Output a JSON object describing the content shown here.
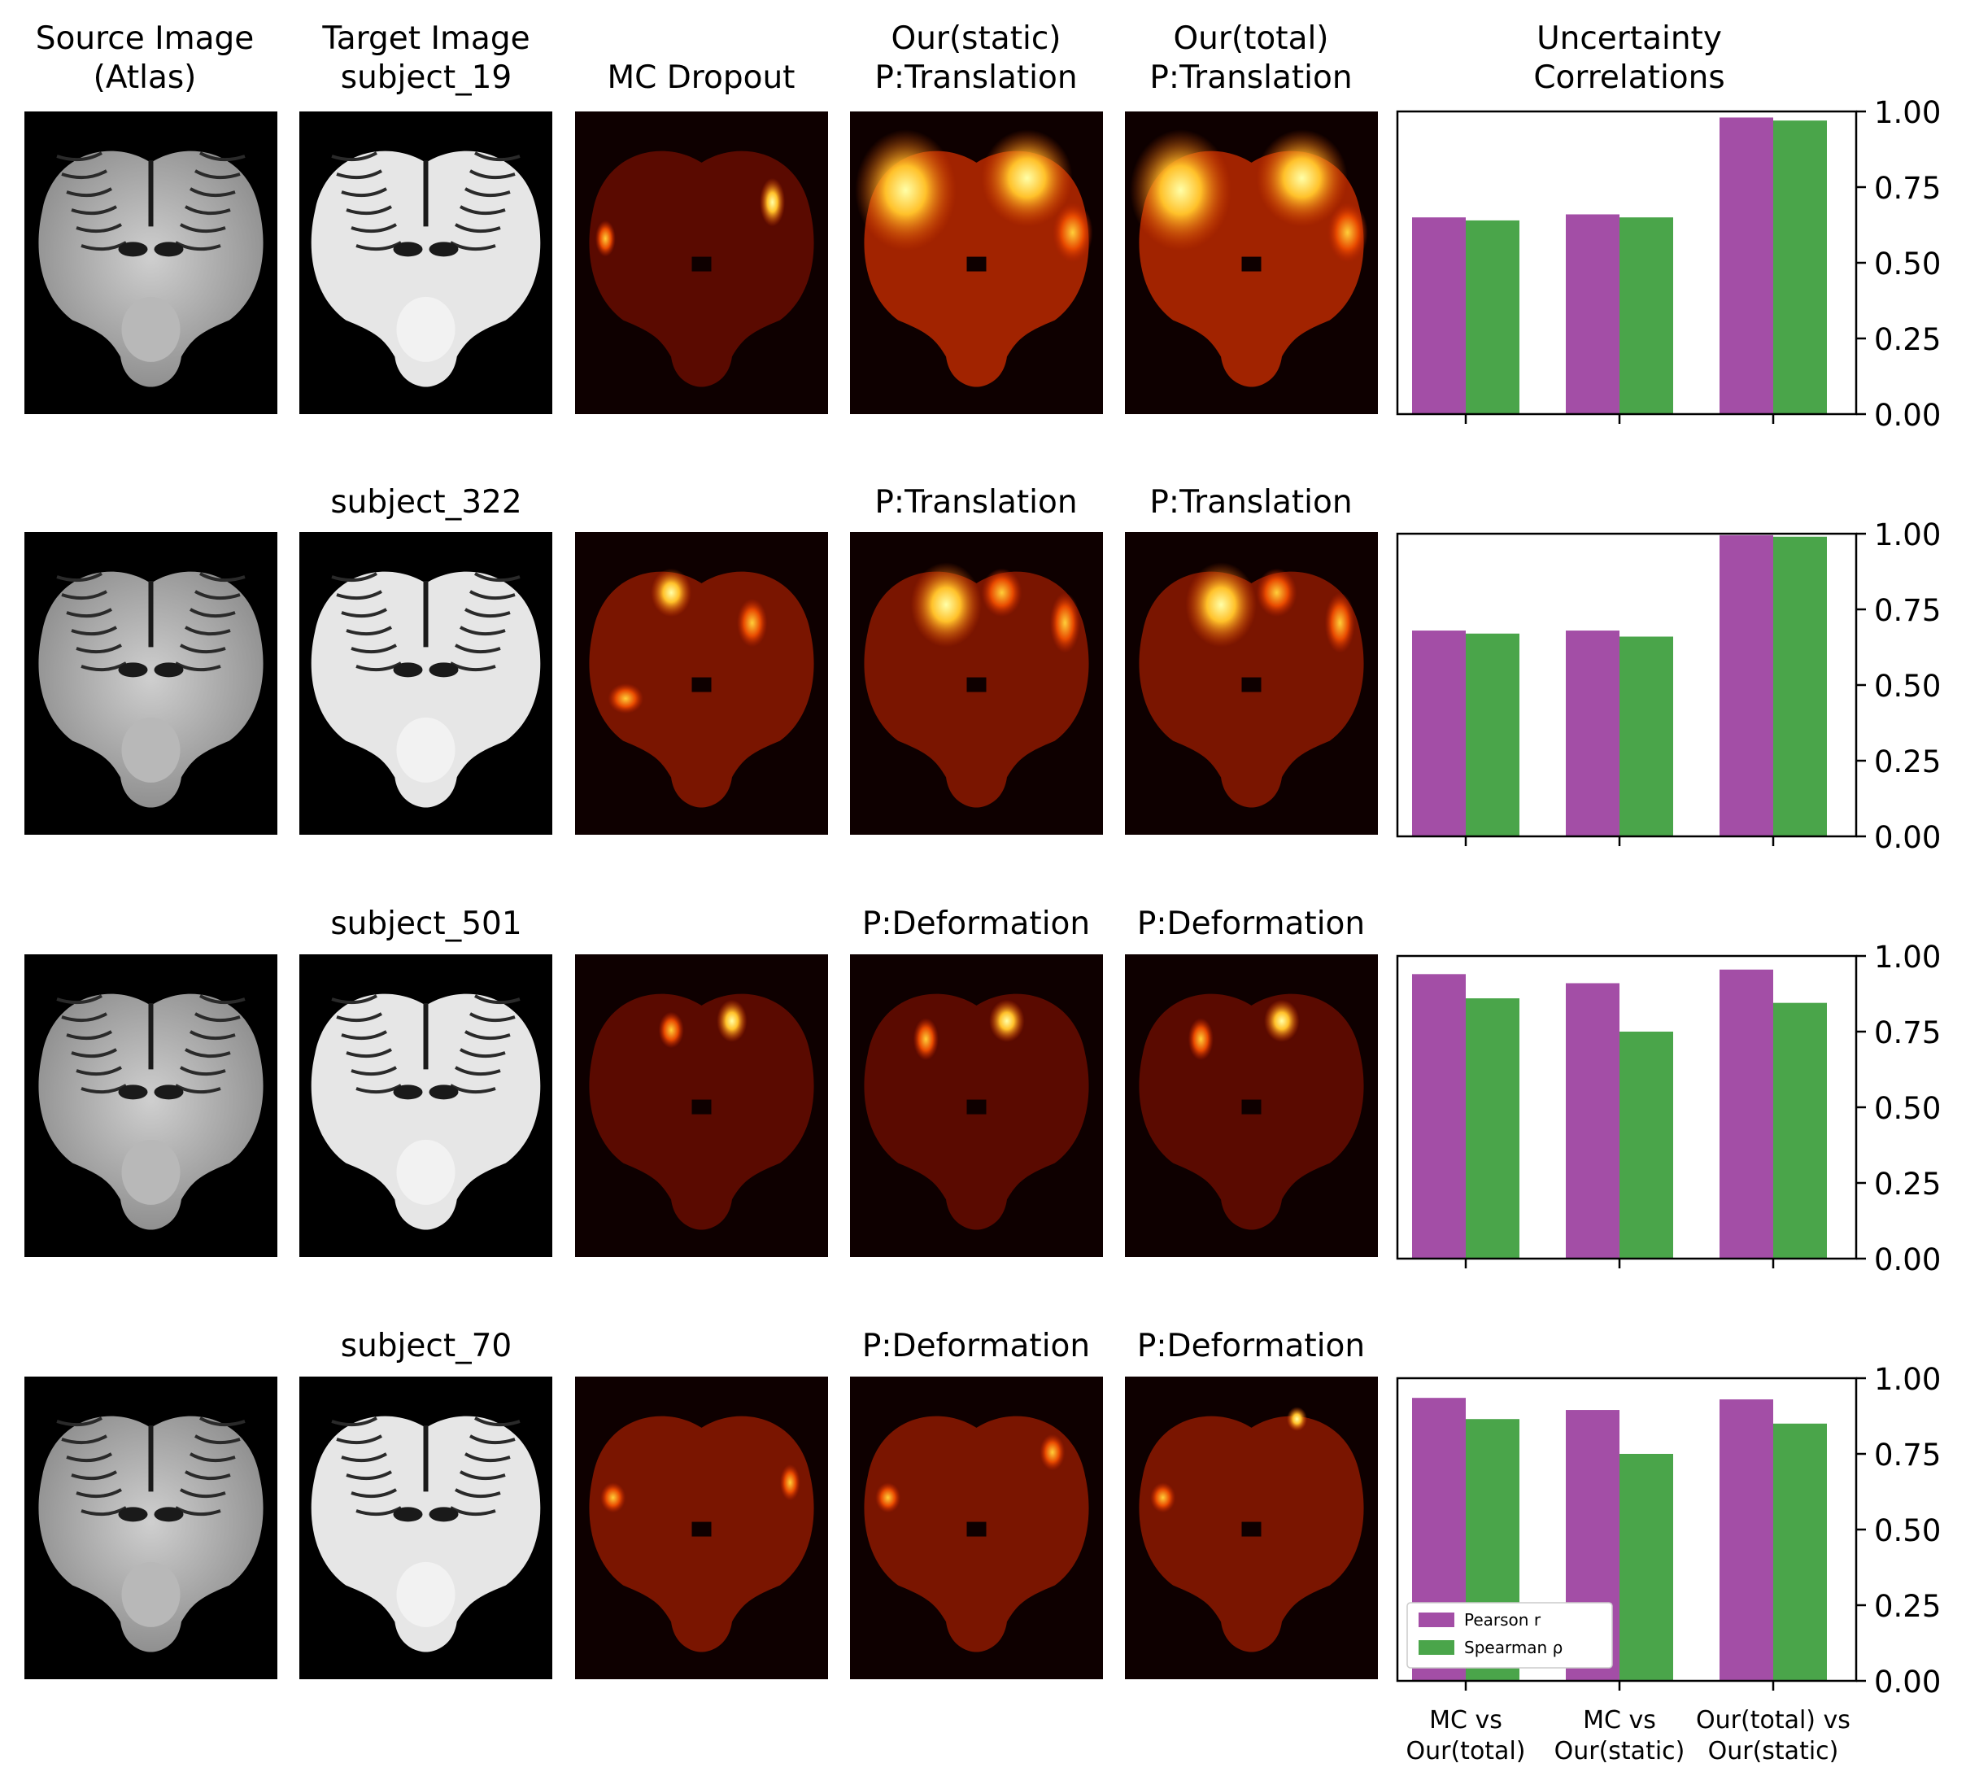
{
  "column_titles": [
    [
      "Source Image",
      "(Atlas)"
    ],
    [
      "Target Image",
      "subject_19"
    ],
    [
      "MC Dropout"
    ],
    [
      "Our(static)",
      "P:Translation"
    ],
    [
      "Our(total)",
      "P:Translation"
    ],
    [
      "Uncertainty",
      "Correlations"
    ]
  ],
  "rows": [
    {
      "subject": "subject_19",
      "static_label": "P:Translation",
      "total_label": "P:Translation"
    },
    {
      "subject": "subject_322",
      "static_label": "P:Translation",
      "total_label": "P:Translation"
    },
    {
      "subject": "subject_501",
      "static_label": "P:Deformation",
      "total_label": "P:Deformation"
    },
    {
      "subject": "subject_70",
      "static_label": "P:Deformation",
      "total_label": "P:Deformation"
    }
  ],
  "colors": {
    "pearson": "#a34ea6",
    "spearman": "#4aa54a"
  },
  "chart_data": [
    {
      "type": "bar",
      "row": 1,
      "title": "Uncertainty Correlations",
      "categories": [
        [
          "MC vs",
          "Our(total)"
        ],
        [
          "MC vs",
          "Our(static)"
        ],
        [
          "Our(total) vs",
          "Our(static)"
        ]
      ],
      "series": [
        {
          "name": "Pearson r",
          "values": [
            0.65,
            0.66,
            0.98
          ]
        },
        {
          "name": "Spearman ρ",
          "values": [
            0.64,
            0.65,
            0.97
          ]
        }
      ],
      "ylim": [
        0,
        1
      ],
      "yticks": [
        "0.00",
        "0.25",
        "0.50",
        "0.75",
        "1.00"
      ]
    },
    {
      "type": "bar",
      "row": 2,
      "categories": [
        [
          "MC vs",
          "Our(total)"
        ],
        [
          "MC vs",
          "Our(static)"
        ],
        [
          "Our(total) vs",
          "Our(static)"
        ]
      ],
      "series": [
        {
          "name": "Pearson r",
          "values": [
            0.68,
            0.68,
            0.995
          ]
        },
        {
          "name": "Spearman ρ",
          "values": [
            0.67,
            0.66,
            0.99
          ]
        }
      ],
      "ylim": [
        0,
        1
      ],
      "yticks": [
        "0.00",
        "0.25",
        "0.50",
        "0.75",
        "1.00"
      ]
    },
    {
      "type": "bar",
      "row": 3,
      "categories": [
        [
          "MC vs",
          "Our(total)"
        ],
        [
          "MC vs",
          "Our(static)"
        ],
        [
          "Our(total) vs",
          "Our(static)"
        ]
      ],
      "series": [
        {
          "name": "Pearson r",
          "values": [
            0.94,
            0.91,
            0.955
          ]
        },
        {
          "name": "Spearman ρ",
          "values": [
            0.86,
            0.75,
            0.845
          ]
        }
      ],
      "ylim": [
        0,
        1
      ],
      "yticks": [
        "0.00",
        "0.25",
        "0.50",
        "0.75",
        "1.00"
      ]
    },
    {
      "type": "bar",
      "row": 4,
      "categories": [
        [
          "MC vs",
          "Our(total)"
        ],
        [
          "MC vs",
          "Our(static)"
        ],
        [
          "Our(total) vs",
          "Our(static)"
        ]
      ],
      "series": [
        {
          "name": "Pearson r",
          "values": [
            0.935,
            0.895,
            0.93
          ]
        },
        {
          "name": "Spearman ρ",
          "values": [
            0.865,
            0.75,
            0.85
          ]
        }
      ],
      "ylim": [
        0,
        1
      ],
      "yticks": [
        "0.00",
        "0.25",
        "0.50",
        "0.75",
        "1.00"
      ],
      "legend": {
        "position": "lower-left",
        "entries": [
          "Pearson r",
          "Spearman ρ"
        ]
      }
    }
  ]
}
